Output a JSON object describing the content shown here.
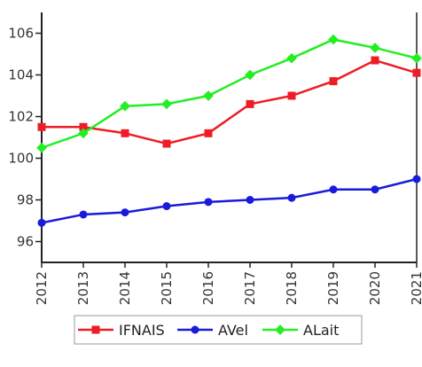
{
  "chart_data": {
    "type": "line",
    "title": "",
    "xlabel": "",
    "ylabel": "",
    "x": [
      "2012",
      "2013",
      "2014",
      "2015",
      "2016",
      "2017",
      "2018",
      "2019",
      "2020",
      "2021"
    ],
    "ylim": [
      95,
      107
    ],
    "y_ticks": [
      "96",
      "98",
      "100",
      "102",
      "104",
      "106"
    ],
    "grid": false,
    "legend_position": "bottom",
    "series": [
      {
        "name": "IFNAIS",
        "color": "#ee1c25",
        "marker": "square",
        "values": [
          101.5,
          101.5,
          101.2,
          100.7,
          101.2,
          102.6,
          103.0,
          103.7,
          104.7,
          104.1
        ]
      },
      {
        "name": "AVel",
        "color": "#1a1adc",
        "marker": "circle",
        "values": [
          96.9,
          97.3,
          97.4,
          97.7,
          97.9,
          98.0,
          98.1,
          98.5,
          98.5,
          99.0
        ]
      },
      {
        "name": "ALait",
        "color": "#22ee22",
        "marker": "diamond",
        "values": [
          100.5,
          101.2,
          102.5,
          102.6,
          103.0,
          104.0,
          104.8,
          105.7,
          105.3,
          104.8
        ]
      }
    ]
  }
}
